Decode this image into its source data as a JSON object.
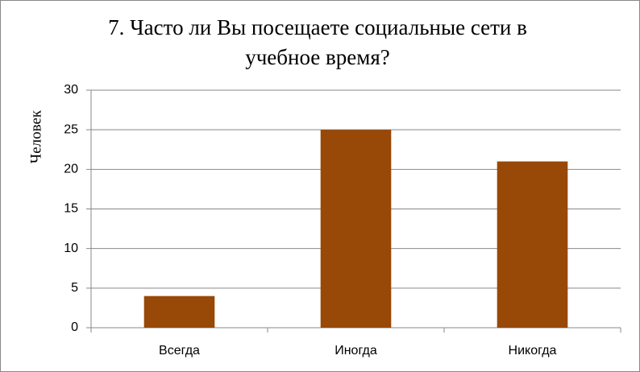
{
  "chart_data": {
    "type": "bar",
    "title": "7. Часто ли Вы посещаете социальные сети в учебное время?",
    "y_label": "Человек",
    "categories": [
      "Всегда",
      "Иногда",
      "Никогда"
    ],
    "values": [
      4,
      25,
      21
    ],
    "color": "#984807",
    "ylim": [
      0,
      30
    ],
    "yticks": [
      0,
      5,
      10,
      15,
      20,
      25,
      30
    ],
    "grid": true
  }
}
